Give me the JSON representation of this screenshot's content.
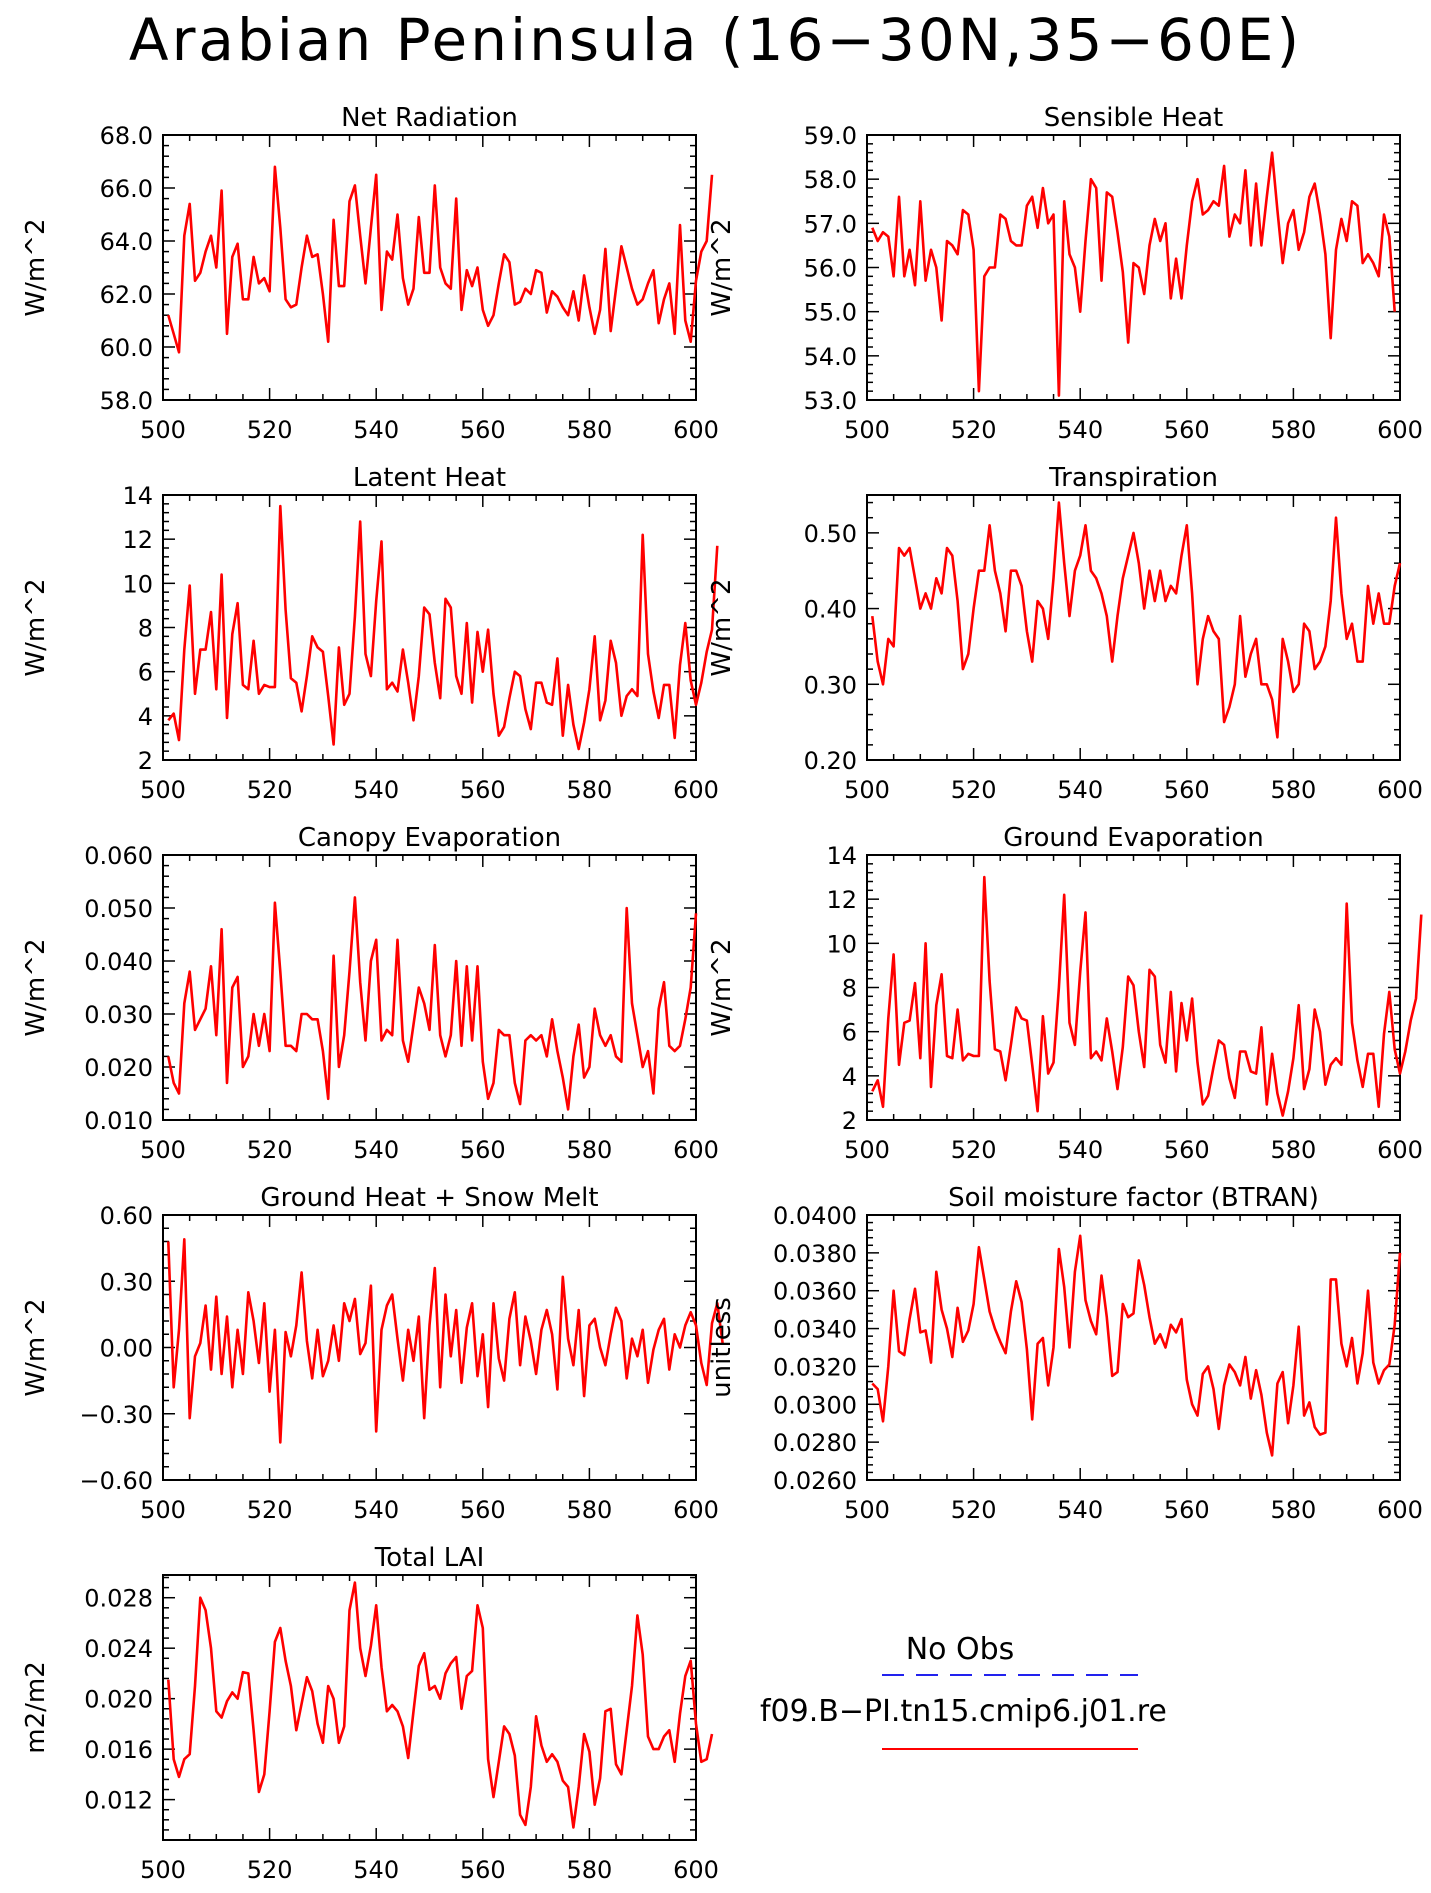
{
  "title": "Arabian Peninsula (16−30N,35−60E)",
  "legend": {
    "items": [
      {
        "label": "No Obs",
        "color": "#2222ee",
        "dash": true
      },
      {
        "label": "f09.B−PI.tn15.cmip6.j01.re",
        "color": "#ff0000",
        "dash": false
      }
    ]
  },
  "line_color": "#ff0000",
  "chart_data": [
    {
      "type": "line",
      "title": "Net Radiation",
      "ylabel": "W/m^2",
      "xlim": [
        500,
        600
      ],
      "ylim": [
        58,
        68
      ],
      "xticks": [
        500,
        520,
        540,
        560,
        580,
        600
      ],
      "xtick_labels": [
        "500",
        "520",
        "540",
        "560",
        "580",
        "600"
      ],
      "yticks": [
        58,
        60,
        62,
        64,
        66,
        68
      ],
      "ytick_labels": [
        "58.0",
        "60.0",
        "62.0",
        "64.0",
        "66.0",
        "68.0"
      ],
      "x_start": 501,
      "values": [
        61.2,
        60.5,
        59.8,
        64.2,
        65.4,
        62.5,
        62.8,
        63.6,
        64.2,
        63.0,
        65.9,
        60.5,
        63.4,
        63.9,
        61.8,
        61.8,
        63.4,
        62.4,
        62.6,
        62.1,
        66.8,
        64.5,
        61.8,
        61.5,
        61.6,
        63.0,
        64.2,
        63.4,
        63.5,
        62.0,
        60.2,
        64.8,
        62.3,
        62.3,
        65.5,
        66.1,
        64.2,
        62.4,
        64.5,
        66.5,
        61.4,
        63.6,
        63.3,
        65.0,
        62.6,
        61.6,
        62.2,
        64.9,
        62.8,
        62.8,
        66.1,
        63.0,
        62.4,
        62.2,
        65.6,
        61.4,
        62.9,
        62.3,
        63.0,
        61.4,
        60.8,
        61.2,
        62.4,
        63.5,
        63.2,
        61.6,
        61.7,
        62.2,
        62.0,
        62.9,
        62.8,
        61.3,
        62.1,
        61.9,
        61.5,
        61.2,
        62.1,
        61.0,
        62.7,
        61.5,
        60.5,
        61.4,
        63.7,
        60.6,
        62.2,
        63.8,
        63.0,
        62.2,
        61.6,
        61.8,
        62.4,
        62.9,
        60.9,
        61.8,
        62.4,
        60.5,
        64.6,
        61.0,
        60.2,
        62.5,
        63.6,
        64.0,
        66.5
      ]
    },
    {
      "type": "line",
      "title": "Sensible Heat",
      "ylabel": "W/m^2",
      "xlim": [
        500,
        600
      ],
      "ylim": [
        53,
        59
      ],
      "xticks": [
        500,
        520,
        540,
        560,
        580,
        600
      ],
      "xtick_labels": [
        "500",
        "520",
        "540",
        "560",
        "580",
        "600"
      ],
      "yticks": [
        53,
        54,
        55,
        56,
        57,
        58,
        59
      ],
      "ytick_labels": [
        "53.0",
        "54.0",
        "55.0",
        "56.0",
        "57.0",
        "58.0",
        "59.0"
      ],
      "x_start": 501,
      "values": [
        56.9,
        56.6,
        56.8,
        56.7,
        55.8,
        57.6,
        55.8,
        56.4,
        55.6,
        57.5,
        55.7,
        56.4,
        56.0,
        54.8,
        56.6,
        56.5,
        56.3,
        57.3,
        57.2,
        56.4,
        53.2,
        55.8,
        56.0,
        56.0,
        57.2,
        57.1,
        56.6,
        56.5,
        56.5,
        57.4,
        57.6,
        56.9,
        57.8,
        57.0,
        57.2,
        53.1,
        57.5,
        56.3,
        56.0,
        55.0,
        56.6,
        58.0,
        57.8,
        55.7,
        57.7,
        57.6,
        56.8,
        55.9,
        54.3,
        56.1,
        56.0,
        55.4,
        56.5,
        57.1,
        56.6,
        57.0,
        55.3,
        56.2,
        55.3,
        56.5,
        57.5,
        58.0,
        57.2,
        57.3,
        57.5,
        57.4,
        58.3,
        56.7,
        57.2,
        57.0,
        58.2,
        56.5,
        57.9,
        56.5,
        57.6,
        58.6,
        57.3,
        56.1,
        57.0,
        57.3,
        56.4,
        56.8,
        57.6,
        57.9,
        57.2,
        56.3,
        54.4,
        56.4,
        57.1,
        56.6,
        57.5,
        57.4,
        56.1,
        56.3,
        56.1,
        55.8,
        57.2,
        56.7,
        55.0
      ]
    },
    {
      "type": "line",
      "title": "Latent Heat",
      "ylabel": "W/m^2",
      "xlim": [
        500,
        600
      ],
      "ylim": [
        2,
        14
      ],
      "xticks": [
        500,
        520,
        540,
        560,
        580,
        600
      ],
      "xtick_labels": [
        "500",
        "520",
        "540",
        "560",
        "580",
        "600"
      ],
      "yticks": [
        2,
        4,
        6,
        8,
        10,
        12,
        14
      ],
      "ytick_labels": [
        "2",
        "4",
        "6",
        "8",
        "10",
        "12",
        "14"
      ],
      "x_start": 501,
      "values": [
        3.8,
        4.1,
        2.9,
        7.0,
        9.9,
        5.0,
        7.0,
        7.0,
        8.7,
        5.2,
        10.4,
        3.9,
        7.7,
        9.1,
        5.4,
        5.2,
        7.4,
        5.0,
        5.4,
        5.3,
        5.3,
        13.5,
        8.8,
        5.7,
        5.5,
        4.2,
        5.8,
        7.6,
        7.1,
        6.9,
        4.9,
        2.7,
        7.1,
        4.5,
        5.0,
        8.5,
        12.8,
        6.8,
        5.8,
        9.2,
        11.9,
        5.2,
        5.5,
        5.1,
        7.0,
        5.5,
        3.8,
        5.8,
        8.9,
        8.6,
        6.4,
        4.8,
        9.3,
        8.9,
        5.8,
        5.0,
        8.2,
        4.6,
        7.8,
        6.0,
        7.9,
        5.0,
        3.1,
        3.5,
        4.8,
        6.0,
        5.8,
        4.3,
        3.4,
        5.5,
        5.5,
        4.6,
        4.5,
        6.6,
        3.1,
        5.4,
        3.6,
        2.5,
        3.7,
        5.2,
        7.6,
        3.8,
        4.7,
        7.4,
        6.4,
        4.0,
        4.9,
        5.2,
        4.9,
        12.2,
        6.8,
        5.1,
        3.9,
        5.4,
        5.4,
        3.0,
        6.3,
        8.2,
        5.6,
        4.5,
        5.5,
        6.9,
        7.9,
        11.7
      ]
    },
    {
      "type": "line",
      "title": "Transpiration",
      "ylabel": "W/m^2",
      "xlim": [
        500,
        600
      ],
      "ylim": [
        0.2,
        0.55
      ],
      "xticks": [
        500,
        520,
        540,
        560,
        580,
        600
      ],
      "xtick_labels": [
        "500",
        "520",
        "540",
        "560",
        "580",
        "600"
      ],
      "yticks": [
        0.2,
        0.3,
        0.4,
        0.5
      ],
      "ytick_labels": [
        "0.20",
        "0.30",
        "0.40",
        "0.50"
      ],
      "x_start": 501,
      "values": [
        0.39,
        0.33,
        0.3,
        0.36,
        0.35,
        0.48,
        0.47,
        0.48,
        0.44,
        0.4,
        0.42,
        0.4,
        0.44,
        0.42,
        0.48,
        0.47,
        0.41,
        0.32,
        0.34,
        0.4,
        0.45,
        0.45,
        0.51,
        0.45,
        0.42,
        0.37,
        0.45,
        0.45,
        0.43,
        0.37,
        0.33,
        0.41,
        0.4,
        0.36,
        0.44,
        0.54,
        0.46,
        0.39,
        0.45,
        0.47,
        0.51,
        0.45,
        0.44,
        0.42,
        0.39,
        0.33,
        0.39,
        0.44,
        0.47,
        0.5,
        0.46,
        0.4,
        0.45,
        0.41,
        0.45,
        0.41,
        0.43,
        0.42,
        0.47,
        0.51,
        0.42,
        0.3,
        0.36,
        0.39,
        0.37,
        0.36,
        0.25,
        0.27,
        0.3,
        0.39,
        0.31,
        0.34,
        0.36,
        0.3,
        0.3,
        0.28,
        0.23,
        0.36,
        0.33,
        0.29,
        0.3,
        0.38,
        0.37,
        0.32,
        0.33,
        0.35,
        0.41,
        0.52,
        0.42,
        0.36,
        0.38,
        0.33,
        0.33,
        0.43,
        0.38,
        0.42,
        0.38,
        0.38,
        0.43,
        0.46
      ]
    },
    {
      "type": "line",
      "title": "Canopy Evaporation",
      "ylabel": "W/m^2",
      "xlim": [
        500,
        600
      ],
      "ylim": [
        0.01,
        0.06
      ],
      "xticks": [
        500,
        520,
        540,
        560,
        580,
        600
      ],
      "xtick_labels": [
        "500",
        "520",
        "540",
        "560",
        "580",
        "600"
      ],
      "yticks": [
        0.01,
        0.02,
        0.03,
        0.04,
        0.05,
        0.06
      ],
      "ytick_labels": [
        "0.010",
        "0.020",
        "0.030",
        "0.040",
        "0.050",
        "0.060"
      ],
      "x_start": 501,
      "values": [
        0.022,
        0.017,
        0.015,
        0.032,
        0.038,
        0.027,
        0.029,
        0.031,
        0.039,
        0.026,
        0.046,
        0.017,
        0.035,
        0.037,
        0.02,
        0.022,
        0.03,
        0.024,
        0.03,
        0.023,
        0.051,
        0.038,
        0.024,
        0.024,
        0.023,
        0.03,
        0.03,
        0.029,
        0.029,
        0.023,
        0.014,
        0.041,
        0.02,
        0.026,
        0.038,
        0.052,
        0.036,
        0.025,
        0.04,
        0.044,
        0.025,
        0.027,
        0.026,
        0.044,
        0.025,
        0.021,
        0.028,
        0.035,
        0.032,
        0.027,
        0.043,
        0.026,
        0.022,
        0.026,
        0.04,
        0.024,
        0.039,
        0.025,
        0.039,
        0.021,
        0.014,
        0.017,
        0.027,
        0.026,
        0.026,
        0.017,
        0.013,
        0.025,
        0.026,
        0.025,
        0.026,
        0.022,
        0.029,
        0.023,
        0.018,
        0.012,
        0.022,
        0.028,
        0.018,
        0.02,
        0.031,
        0.026,
        0.024,
        0.026,
        0.022,
        0.021,
        0.05,
        0.032,
        0.026,
        0.02,
        0.023,
        0.015,
        0.031,
        0.036,
        0.024,
        0.023,
        0.024,
        0.029,
        0.035,
        0.049
      ]
    },
    {
      "type": "line",
      "title": "Ground Evaporation",
      "ylabel": "W/m^2",
      "xlim": [
        500,
        600
      ],
      "ylim": [
        2,
        14
      ],
      "xticks": [
        500,
        520,
        540,
        560,
        580,
        600
      ],
      "xtick_labels": [
        "500",
        "520",
        "540",
        "560",
        "580",
        "600"
      ],
      "yticks": [
        2,
        4,
        6,
        8,
        10,
        12,
        14
      ],
      "ytick_labels": [
        "2",
        "4",
        "6",
        "8",
        "10",
        "12",
        "14"
      ],
      "x_start": 501,
      "values": [
        3.3,
        3.8,
        2.6,
        6.6,
        9.5,
        4.5,
        6.4,
        6.5,
        8.2,
        4.8,
        10.0,
        3.5,
        7.2,
        8.6,
        4.9,
        4.8,
        7.0,
        4.7,
        5.0,
        4.9,
        4.9,
        13.0,
        8.3,
        5.2,
        5.1,
        3.8,
        5.4,
        7.1,
        6.6,
        6.5,
        4.5,
        2.4,
        6.7,
        4.1,
        4.6,
        8.0,
        12.2,
        6.4,
        5.4,
        8.7,
        11.4,
        4.8,
        5.1,
        4.7,
        6.6,
        5.1,
        3.4,
        5.3,
        8.5,
        8.1,
        6.0,
        4.4,
        8.8,
        8.5,
        5.4,
        4.6,
        7.8,
        4.2,
        7.3,
        5.6,
        7.5,
        4.6,
        2.7,
        3.1,
        4.4,
        5.6,
        5.4,
        3.9,
        3.0,
        5.1,
        5.1,
        4.2,
        4.1,
        6.2,
        2.7,
        5.0,
        3.2,
        2.2,
        3.3,
        4.8,
        7.2,
        3.4,
        4.3,
        7.0,
        6.0,
        3.6,
        4.5,
        4.8,
        4.5,
        11.8,
        6.4,
        4.7,
        3.5,
        5.0,
        5.0,
        2.6,
        5.9,
        7.8,
        5.2,
        4.1,
        5.1,
        6.5,
        7.5,
        11.3
      ]
    },
    {
      "type": "line",
      "title": "Ground Heat + Snow Melt",
      "ylabel": "W/m^2",
      "xlim": [
        500,
        600
      ],
      "ylim": [
        -0.6,
        0.6
      ],
      "xticks": [
        500,
        520,
        540,
        560,
        580,
        600
      ],
      "xtick_labels": [
        "500",
        "520",
        "540",
        "560",
        "580",
        "600"
      ],
      "yticks": [
        -0.6,
        -0.3,
        0.0,
        0.3,
        0.6
      ],
      "ytick_labels": [
        "−0.60",
        "−0.30",
        "0.00",
        "0.30",
        "0.60"
      ],
      "x_start": 501,
      "values": [
        0.48,
        -0.18,
        0.08,
        0.49,
        -0.32,
        -0.04,
        0.02,
        0.19,
        -0.1,
        0.23,
        -0.12,
        0.14,
        -0.18,
        0.08,
        -0.12,
        0.25,
        0.12,
        -0.07,
        0.2,
        -0.2,
        0.08,
        -0.43,
        0.07,
        -0.04,
        0.1,
        0.34,
        0.03,
        -0.14,
        0.08,
        -0.13,
        -0.06,
        0.1,
        -0.06,
        0.2,
        0.12,
        0.22,
        -0.03,
        0.02,
        0.28,
        -0.38,
        0.08,
        0.19,
        0.24,
        0.04,
        -0.15,
        0.08,
        -0.06,
        0.14,
        -0.32,
        0.1,
        0.36,
        -0.18,
        0.24,
        -0.04,
        0.17,
        -0.16,
        0.09,
        0.2,
        -0.13,
        0.06,
        -0.27,
        0.2,
        -0.05,
        -0.15,
        0.13,
        0.25,
        -0.08,
        0.14,
        0.03,
        -0.12,
        0.08,
        0.17,
        0.06,
        -0.19,
        0.32,
        0.04,
        -0.08,
        0.17,
        -0.22,
        0.1,
        0.13,
        0.0,
        -0.08,
        0.06,
        0.18,
        0.12,
        -0.14,
        0.04,
        -0.04,
        0.08,
        -0.16,
        -0.01,
        0.08,
        0.13,
        -0.1,
        0.06,
        0.0,
        0.1,
        0.16,
        0.1,
        -0.07,
        -0.17,
        0.11,
        0.2,
        0.02
      ]
    },
    {
      "type": "line",
      "title": "Soil moisture factor (BTRAN)",
      "ylabel": "unitless",
      "xlim": [
        500,
        600
      ],
      "ylim": [
        0.026,
        0.04
      ],
      "xticks": [
        500,
        520,
        540,
        560,
        580,
        600
      ],
      "xtick_labels": [
        "500",
        "520",
        "540",
        "560",
        "580",
        "600"
      ],
      "yticks": [
        0.026,
        0.028,
        0.03,
        0.032,
        0.034,
        0.036,
        0.038,
        0.04
      ],
      "ytick_labels": [
        "0.0260",
        "0.0280",
        "0.0300",
        "0.0320",
        "0.0340",
        "0.0360",
        "0.0380",
        "0.0400"
      ],
      "x_start": 501,
      "values": [
        0.0311,
        0.0308,
        0.0291,
        0.032,
        0.036,
        0.0328,
        0.0326,
        0.0345,
        0.0361,
        0.0338,
        0.0339,
        0.0322,
        0.037,
        0.035,
        0.034,
        0.0325,
        0.0351,
        0.0333,
        0.0339,
        0.0353,
        0.0383,
        0.0366,
        0.0349,
        0.034,
        0.0333,
        0.0327,
        0.0349,
        0.0365,
        0.0354,
        0.0329,
        0.0292,
        0.0332,
        0.0335,
        0.031,
        0.033,
        0.0382,
        0.0362,
        0.033,
        0.037,
        0.0389,
        0.0355,
        0.0344,
        0.0337,
        0.0368,
        0.0346,
        0.0315,
        0.0317,
        0.0353,
        0.0346,
        0.0348,
        0.0376,
        0.0363,
        0.0346,
        0.0332,
        0.0337,
        0.033,
        0.0342,
        0.0338,
        0.0345,
        0.0313,
        0.03,
        0.0294,
        0.0316,
        0.032,
        0.0308,
        0.0287,
        0.031,
        0.0321,
        0.0317,
        0.031,
        0.0325,
        0.0303,
        0.0318,
        0.0305,
        0.0285,
        0.0273,
        0.0311,
        0.0317,
        0.029,
        0.031,
        0.0341,
        0.0294,
        0.0301,
        0.0288,
        0.0284,
        0.0285,
        0.0366,
        0.0366,
        0.0332,
        0.032,
        0.0335,
        0.0311,
        0.0327,
        0.036,
        0.0322,
        0.0311,
        0.0318,
        0.0321,
        0.0342,
        0.038
      ]
    },
    {
      "type": "line",
      "title": "Total LAI",
      "ylabel": "m2/m2",
      "xlim": [
        500,
        600
      ],
      "ylim": [
        0.0088,
        0.0298
      ],
      "xticks": [
        500,
        520,
        540,
        560,
        580,
        600
      ],
      "xtick_labels": [
        "500",
        "520",
        "540",
        "560",
        "580",
        "600"
      ],
      "yticks": [
        0.012,
        0.016,
        0.02,
        0.024,
        0.028
      ],
      "ytick_labels": [
        "0.012",
        "0.016",
        "0.020",
        "0.024",
        "0.028"
      ],
      "x_start": 501,
      "values": [
        0.0215,
        0.0152,
        0.0138,
        0.0152,
        0.0156,
        0.021,
        0.028,
        0.027,
        0.024,
        0.019,
        0.0185,
        0.0198,
        0.0205,
        0.02,
        0.0221,
        0.022,
        0.0175,
        0.0126,
        0.014,
        0.019,
        0.0245,
        0.0256,
        0.023,
        0.021,
        0.0175,
        0.0196,
        0.0217,
        0.0206,
        0.018,
        0.0165,
        0.021,
        0.02,
        0.0165,
        0.0178,
        0.027,
        0.0292,
        0.024,
        0.0218,
        0.0242,
        0.0274,
        0.0225,
        0.019,
        0.0195,
        0.019,
        0.0178,
        0.0153,
        0.019,
        0.0226,
        0.0236,
        0.0207,
        0.021,
        0.02,
        0.022,
        0.0228,
        0.0233,
        0.0192,
        0.0218,
        0.0222,
        0.0274,
        0.0256,
        0.0152,
        0.0122,
        0.015,
        0.0178,
        0.0172,
        0.0155,
        0.0108,
        0.01,
        0.013,
        0.0186,
        0.0163,
        0.015,
        0.0156,
        0.015,
        0.0135,
        0.013,
        0.0098,
        0.013,
        0.0172,
        0.0158,
        0.0116,
        0.0137,
        0.019,
        0.0192,
        0.0148,
        0.014,
        0.0175,
        0.021,
        0.0266,
        0.0235,
        0.017,
        0.016,
        0.016,
        0.017,
        0.0175,
        0.015,
        0.0188,
        0.0218,
        0.023,
        0.018,
        0.015,
        0.0152,
        0.0172
      ]
    }
  ]
}
